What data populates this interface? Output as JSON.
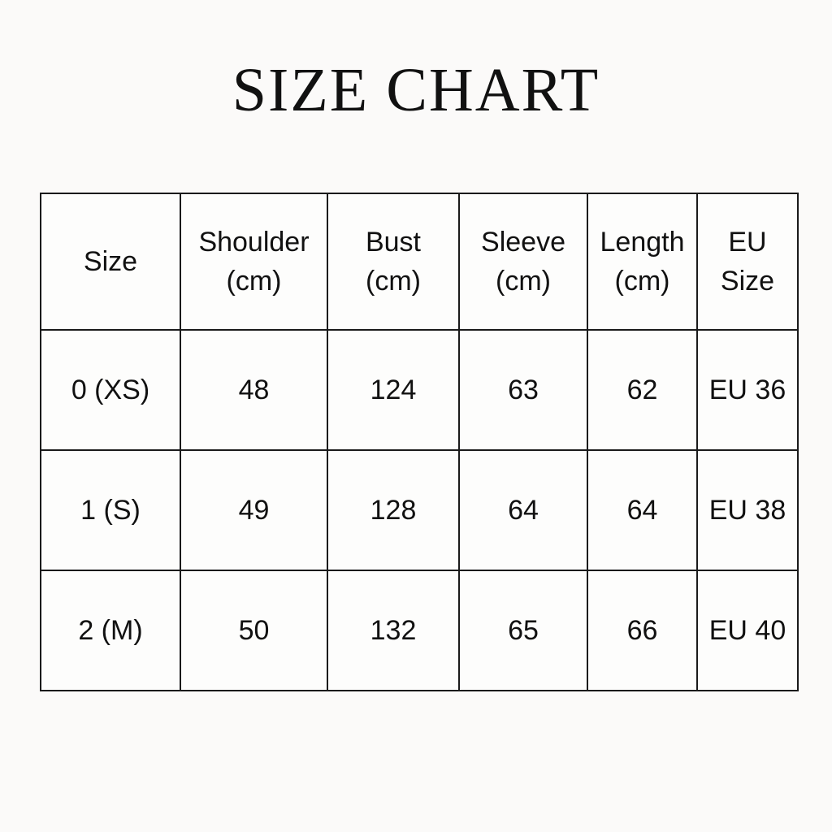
{
  "title": "SIZE CHART",
  "table": {
    "headers": [
      [
        "Size"
      ],
      [
        "Shoulder",
        "(cm)"
      ],
      [
        "Bust",
        "(cm)"
      ],
      [
        "Sleeve",
        "(cm)"
      ],
      [
        "Length",
        "(cm)"
      ],
      [
        "EU",
        "Size"
      ]
    ],
    "rows": [
      [
        "0 (XS)",
        "48",
        "124",
        "63",
        "62",
        "EU 36"
      ],
      [
        "1 (S)",
        "49",
        "128",
        "64",
        "64",
        "EU 38"
      ],
      [
        "2 (M)",
        "50",
        "132",
        "65",
        "66",
        "EU 40"
      ]
    ]
  }
}
